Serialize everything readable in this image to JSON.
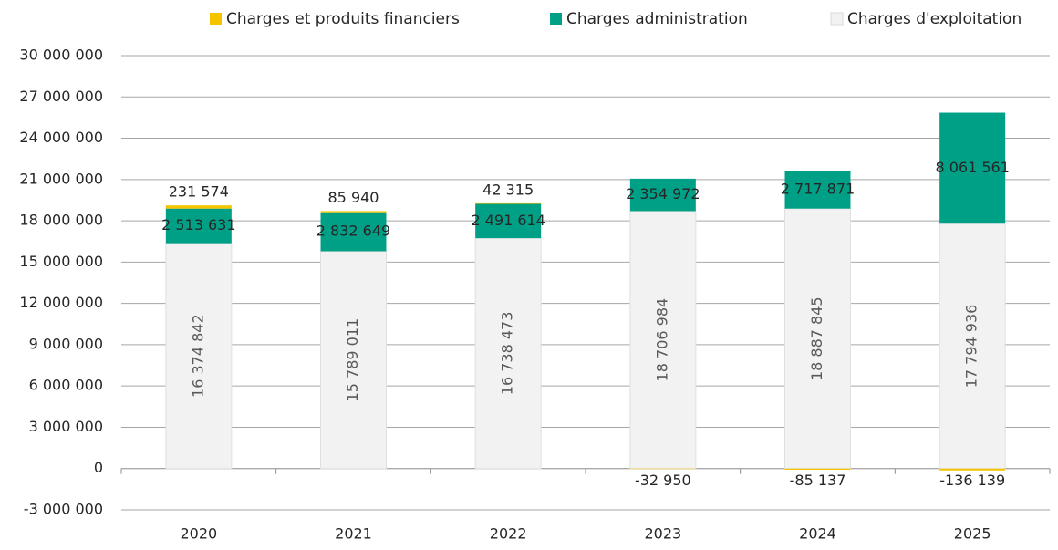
{
  "chart_data": {
    "type": "bar",
    "stacked": true,
    "categories": [
      "2020",
      "2021",
      "2022",
      "2023",
      "2024",
      "2025"
    ],
    "series": [
      {
        "name": "Charges d'exploitation",
        "color": "#f2f2f2",
        "values": [
          16374842,
          15789011,
          16738473,
          18706984,
          18887845,
          17794936
        ],
        "value_labels": [
          "16 374 842",
          "15 789 011",
          "16 738 473",
          "18 706 984",
          "18 887 845",
          "17 794 936"
        ]
      },
      {
        "name": "Charges administration",
        "color": "#00a087",
        "values": [
          2513631,
          2832649,
          2491614,
          2354972,
          2717871,
          8061561
        ],
        "value_labels": [
          "2 513 631",
          "2 832 649",
          "2 491 614",
          "2 354 972",
          "2 717 871",
          "8 061 561"
        ]
      },
      {
        "name": "Charges et produits financiers",
        "color": "#f5c400",
        "values": [
          231574,
          85940,
          42315,
          -32950,
          -85137,
          -136139
        ],
        "value_labels": [
          "231 574",
          "85 940",
          "42 315",
          "-32 950",
          "-85 137",
          "-136 139"
        ]
      }
    ],
    "ylim": [
      -3000000,
      30000000
    ],
    "yticks": [
      {
        "value": -3000000,
        "label": "-3 000 000"
      },
      0,
      {
        "value": 3000000,
        "label": "3 000 000"
      },
      {
        "value": 6000000,
        "label": "6 000 000"
      },
      {
        "value": 9000000,
        "label": "9 000 000"
      },
      {
        "value": 12000000,
        "label": "12 000 000"
      },
      {
        "value": 15000000,
        "label": "15 000 000"
      },
      {
        "value": 18000000,
        "label": "18 000 000"
      },
      {
        "value": 21000000,
        "label": "21 000 000"
      },
      {
        "value": 24000000,
        "label": "24 000 000"
      },
      {
        "value": 27000000,
        "label": "27 000 000"
      },
      {
        "value": 30000000,
        "label": "30 000 000"
      }
    ],
    "grid": true,
    "legend": "top"
  }
}
